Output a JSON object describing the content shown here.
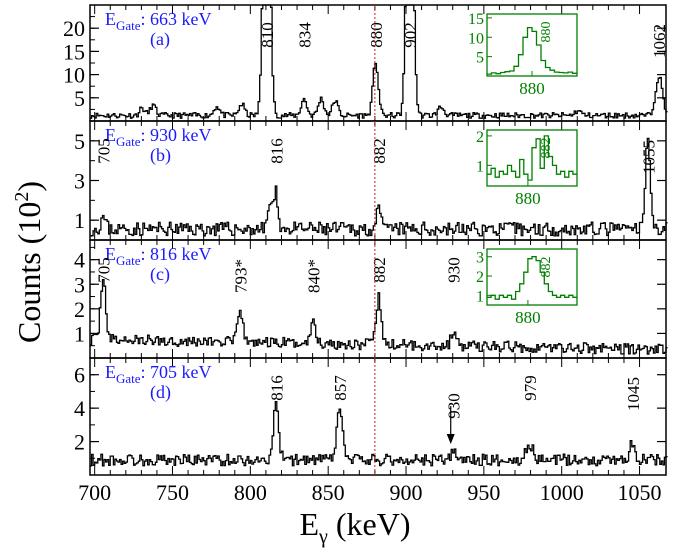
{
  "figure": {
    "ylabel": "Counts (10",
    "ylabel_sup": "2",
    "ylabel_close": ")",
    "xlabel_main": "E",
    "xlabel_sub": "γ",
    "xlabel_unit": " (keV)",
    "marker_line_x": 880
  },
  "colors": {
    "gate_text": "#1a1aff",
    "inset": "#008000",
    "marker": "#d02020",
    "spectrum": "#000000"
  },
  "chart_data": {
    "type": "line",
    "xlabel": "Eγ (keV)",
    "ylabel": "Counts (10^2)",
    "xlim": [
      697,
      1067
    ],
    "x_ticks": [
      700,
      750,
      800,
      850,
      900,
      950,
      1000,
      1050
    ],
    "x_tick_labels": [
      "700",
      "750",
      "800",
      "850",
      "900",
      "950",
      "1000",
      "1050"
    ],
    "panels": [
      {
        "id": "a",
        "gate_prefix": "E",
        "gate_sub": "Gate",
        "gate_value": ": 663 keV",
        "panel_label": "(a)",
        "ylim": [
          0,
          25
        ],
        "y_ticks": [
          5,
          10,
          15,
          20
        ],
        "y_tick_labels": [
          "5",
          "10",
          "15",
          "20"
        ],
        "baseline": 1.2,
        "noise": 0.6,
        "seed": 11,
        "peaks": [
          {
            "x": 730,
            "h": 1.6,
            "w": 1.6
          },
          {
            "x": 737,
            "h": 2.2,
            "w": 1.8
          },
          {
            "x": 778,
            "h": 2.0,
            "w": 1.8
          },
          {
            "x": 794,
            "h": 2.4,
            "w": 1.8
          },
          {
            "x": 810,
            "h": 80,
            "w": 1.9
          },
          {
            "x": 834,
            "h": 3.5,
            "w": 1.8
          },
          {
            "x": 845,
            "h": 3.6,
            "w": 1.8
          },
          {
            "x": 854,
            "h": 3.2,
            "w": 1.8
          },
          {
            "x": 880,
            "h": 11.5,
            "w": 1.7
          },
          {
            "x": 902,
            "h": 80,
            "w": 1.9
          },
          {
            "x": 922,
            "h": 1.8,
            "w": 2
          },
          {
            "x": 1010,
            "h": 1.0,
            "w": 2
          },
          {
            "x": 1062,
            "h": 8.5,
            "w": 2.2
          }
        ],
        "labels": [
          {
            "text": "810",
            "x": 810
          },
          {
            "text": "834",
            "x": 834
          },
          {
            "text": "880",
            "x": 880
          },
          {
            "text": "902",
            "x": 902
          },
          {
            "text": "1062",
            "x": 1062
          }
        ],
        "inset": {
          "xlim": [
            870,
            890
          ],
          "ylim": [
            0,
            16
          ],
          "y_ticks": [
            5,
            10,
            15
          ],
          "y_tick_labels": [
            "5",
            "10",
            "15"
          ],
          "x_tick": 880,
          "x_tick_label": "880",
          "peak_label": "880",
          "steps": [
            0.5,
            0.8,
            0.6,
            0.9,
            1.1,
            1.3,
            2.5,
            5.5,
            10,
            12.5,
            11.5,
            8,
            4,
            2.2,
            1.5,
            1,
            0.9,
            0.8,
            1,
            0.7
          ]
        }
      },
      {
        "id": "b",
        "gate_prefix": "E",
        "gate_sub": "Gate",
        "gate_value": ": 930 keV",
        "panel_label": "(b)",
        "ylim": [
          0,
          6
        ],
        "y_ticks": [
          1,
          3,
          5
        ],
        "y_tick_labels": [
          "1",
          "3",
          "5"
        ],
        "baseline": 0.55,
        "noise": 0.35,
        "seed": 23,
        "peaks": [
          {
            "x": 705,
            "h": 0.6,
            "w": 1.5
          },
          {
            "x": 812,
            "h": 1.3,
            "w": 1.4
          },
          {
            "x": 816,
            "h": 1.8,
            "w": 1.4
          },
          {
            "x": 882,
            "h": 0.9,
            "w": 1.4
          },
          {
            "x": 1055,
            "h": 4.6,
            "w": 1.6
          }
        ],
        "labels": [
          {
            "text": "705",
            "x": 705
          },
          {
            "text": "816",
            "x": 816
          },
          {
            "text": "882",
            "x": 882
          },
          {
            "text": "1055",
            "x": 1055
          }
        ],
        "inset": {
          "xlim": [
            870,
            892
          ],
          "ylim": [
            0.3,
            2.2
          ],
          "y_ticks": [
            1,
            2
          ],
          "y_tick_labels": [
            "1",
            "2"
          ],
          "x_tick": 880,
          "x_tick_label": "880",
          "peak_label": "882",
          "steps": [
            0.7,
            0.9,
            0.6,
            0.8,
            0.7,
            1.0,
            0.8,
            0.6,
            1.2,
            0.7,
            0.5,
            1.6,
            1.9,
            0.9,
            2.0,
            1.3,
            1.0,
            0.7,
            0.8,
            0.6,
            0.8,
            0.7
          ]
        }
      },
      {
        "id": "c",
        "gate_prefix": "E",
        "gate_sub": "Gate",
        "gate_value": ": 816 keV",
        "panel_label": "(c)",
        "ylim": [
          0,
          4.8
        ],
        "y_ticks": [
          1,
          2,
          3,
          4
        ],
        "y_tick_labels": [
          "1",
          "2",
          "3",
          "4"
        ],
        "baseline": 0.75,
        "noise": 0.22,
        "seed": 37,
        "slope": -0.0011,
        "peaks": [
          {
            "x": 705,
            "h": 2.6,
            "w": 1.6
          },
          {
            "x": 793,
            "h": 1.4,
            "w": 1.5
          },
          {
            "x": 840,
            "h": 1.0,
            "w": 1.5
          },
          {
            "x": 882,
            "h": 1.9,
            "w": 1.6
          },
          {
            "x": 930,
            "h": 0.6,
            "w": 1.5
          }
        ],
        "labels": [
          {
            "text": "705",
            "x": 705
          },
          {
            "text": "793*",
            "x": 793
          },
          {
            "text": "840*",
            "x": 840
          },
          {
            "text": "882",
            "x": 882
          },
          {
            "text": "930",
            "x": 930
          }
        ],
        "inset": {
          "xlim": [
            870,
            892
          ],
          "ylim": [
            0.5,
            3.4
          ],
          "y_ticks": [
            1,
            2,
            3
          ],
          "y_tick_labels": [
            "1",
            "2",
            "3"
          ],
          "x_tick": 880,
          "x_tick_label": "880",
          "peak_label": "882",
          "steps": [
            0.9,
            1.0,
            0.8,
            1.0,
            0.9,
            1.0,
            0.8,
            1.2,
            1.6,
            2.2,
            2.9,
            3.0,
            2.8,
            2.2,
            1.6,
            1.2,
            1.0,
            0.9,
            1.0,
            0.9,
            1.0,
            0.9
          ]
        }
      },
      {
        "id": "d",
        "gate_prefix": "E",
        "gate_sub": "Gate",
        "gate_value": ": 705 keV",
        "panel_label": "(d)",
        "ylim": [
          0,
          7
        ],
        "y_ticks": [
          2,
          4,
          6
        ],
        "y_tick_labels": [
          "2",
          "4",
          "6"
        ],
        "baseline": 0.9,
        "noise": 0.35,
        "seed": 53,
        "peaks": [
          {
            "x": 816,
            "h": 3.2,
            "w": 1.7
          },
          {
            "x": 857,
            "h": 3.3,
            "w": 1.7
          },
          {
            "x": 930,
            "h": 0.5,
            "w": 1.5
          },
          {
            "x": 979,
            "h": 0.9,
            "w": 2.2
          },
          {
            "x": 1045,
            "h": 1.1,
            "w": 1.7
          }
        ],
        "labels": [
          {
            "text": "816",
            "x": 816
          },
          {
            "text": "857",
            "x": 857
          },
          {
            "text": "930",
            "x": 930,
            "arrow": true
          },
          {
            "text": "979",
            "x": 979
          },
          {
            "text": "1045",
            "x": 1045
          }
        ]
      }
    ]
  }
}
